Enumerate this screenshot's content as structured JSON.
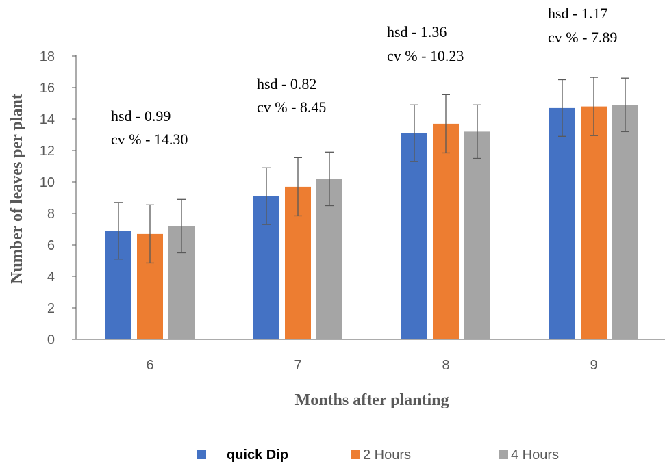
{
  "chart_data": {
    "type": "bar",
    "xlabel": "Months after planting",
    "ylabel": "Number of leaves per plant",
    "ylim": [
      0,
      18
    ],
    "yticks": [
      0,
      2,
      4,
      6,
      8,
      10,
      12,
      14,
      16,
      18
    ],
    "categories": [
      "6",
      "7",
      "8",
      "9"
    ],
    "series": [
      {
        "name": "quick Dip",
        "color": "#4472C4",
        "values": [
          6.9,
          9.1,
          13.1,
          14.7
        ],
        "errors": [
          1.8,
          1.8,
          1.8,
          1.8
        ]
      },
      {
        "name": "2 Hours",
        "color": "#ED7D31",
        "values": [
          6.7,
          9.7,
          13.7,
          14.8
        ],
        "errors": [
          1.85,
          1.85,
          1.85,
          1.85
        ]
      },
      {
        "name": "4 Hours",
        "color": "#A5A5A5",
        "values": [
          7.2,
          10.2,
          13.2,
          14.9
        ],
        "errors": [
          1.7,
          1.7,
          1.7,
          1.7
        ]
      }
    ],
    "annotations": [
      {
        "category": "6",
        "hsd": "hsd - 0.99",
        "cv": "cv % - 14.30"
      },
      {
        "category": "7",
        "hsd": "hsd - 0.82",
        "cv": "cv % - 8.45"
      },
      {
        "category": "8",
        "hsd": "hsd - 1.36",
        "cv": "cv % - 10.23"
      },
      {
        "category": "9",
        "hsd": "hsd - 1.17",
        "cv": "cv % - 7.89"
      }
    ],
    "legend_position": "bottom",
    "grid": false
  }
}
